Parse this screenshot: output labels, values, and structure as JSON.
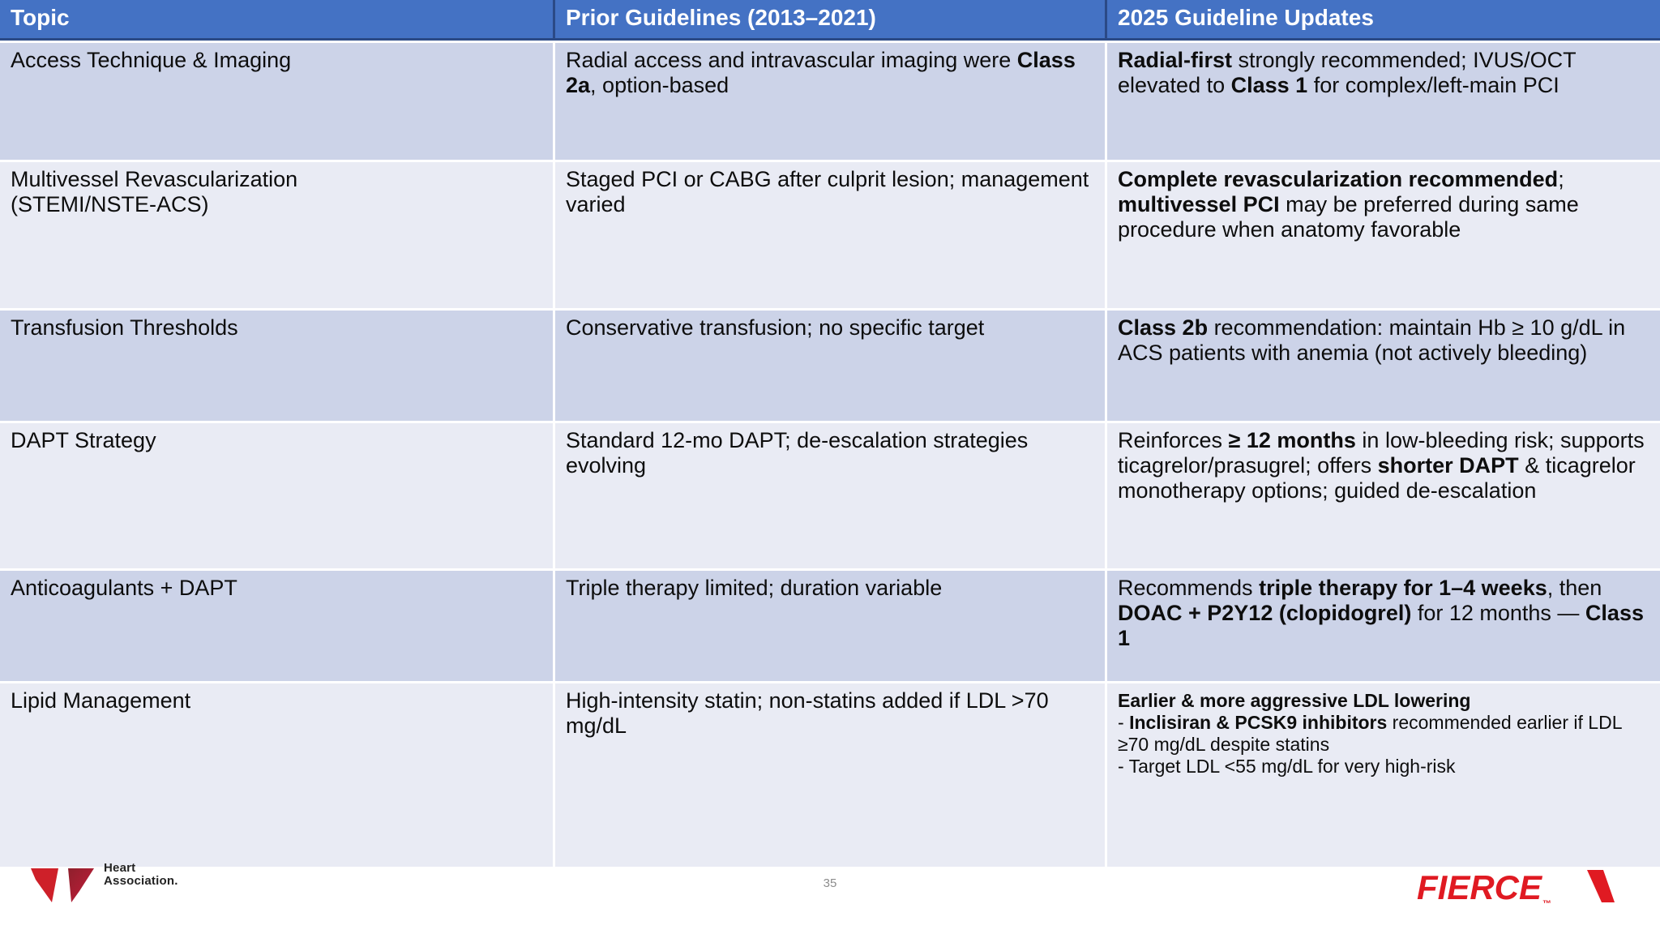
{
  "colors": {
    "header_blue": "#4472C4",
    "navy": "#2b4a86",
    "row_dark": "#CCD3E8",
    "row_light": "#E9EBF4",
    "fierce_red": "#E01A22",
    "aha_red": "#C41E3A",
    "aha_red_dark": "#8E1F2C"
  },
  "table": {
    "headers": {
      "topic": "Topic",
      "prior": "Prior Guidelines (2013–2021)",
      "updates": "2025 Guideline Updates"
    },
    "rows": [
      {
        "topic": [
          {
            "t": "Access Technique & Imaging"
          }
        ],
        "prior": [
          {
            "t": "Radial access and intravascular imaging were "
          },
          {
            "t": "Class 2a",
            "b": true
          },
          {
            "t": ", option-based"
          }
        ],
        "updates": [
          {
            "t": "Radial-first",
            "b": true
          },
          {
            "t": " strongly recommended; IVUS/OCT elevated to "
          },
          {
            "t": "Class 1",
            "b": true
          },
          {
            "t": " for complex/left-main PCI"
          }
        ]
      },
      {
        "topic": [
          {
            "t": "Multivessel Revascularization"
          },
          {
            "br": true
          },
          {
            "t": "(STEMI/NSTE-ACS)"
          }
        ],
        "prior": [
          {
            "t": "Staged PCI or CABG after culprit lesion; management varied"
          }
        ],
        "updates": [
          {
            "t": "Complete revascularization recommended",
            "b": true
          },
          {
            "t": "; "
          },
          {
            "t": "multivessel PCI",
            "b": true
          },
          {
            "t": " may be preferred during same procedure when anatomy favorable"
          }
        ]
      },
      {
        "topic": [
          {
            "t": "Transfusion Thresholds"
          }
        ],
        "prior": [
          {
            "t": "Conservative transfusion; no specific target"
          }
        ],
        "updates": [
          {
            "t": "Class 2b",
            "b": true
          },
          {
            "t": " recommendation: maintain Hb ≥ 10 g/dL in ACS patients with anemia (not actively bleeding)"
          }
        ]
      },
      {
        "topic": [
          {
            "t": "DAPT Strategy"
          }
        ],
        "prior": [
          {
            "t": "Standard 12-mo DAPT; de-escalation strategies evolving"
          }
        ],
        "updates": [
          {
            "t": "Reinforces "
          },
          {
            "t": "≥ 12 months",
            "b": true
          },
          {
            "t": " in low-bleeding risk; supports ticagrelor/prasugrel; offers "
          },
          {
            "t": "shorter DAPT",
            "b": true
          },
          {
            "t": " & ticagrelor monotherapy options; guided de-escalation"
          }
        ]
      },
      {
        "topic": [
          {
            "t": "Anticoagulants + DAPT"
          }
        ],
        "prior": [
          {
            "t": "Triple therapy limited; duration variable"
          }
        ],
        "updates": [
          {
            "t": "Recommends "
          },
          {
            "t": "triple therapy for 1–4 weeks",
            "b": true
          },
          {
            "t": ", then "
          },
          {
            "t": "DOAC + P2Y12 (clopidogrel)",
            "b": true
          },
          {
            "t": " for 12 months — "
          },
          {
            "t": "Class 1",
            "b": true
          }
        ]
      },
      {
        "topic": [
          {
            "t": "Lipid Management"
          }
        ],
        "prior": [
          {
            "t": "High-intensity statin; non-statins added if LDL >70 mg/dL"
          }
        ],
        "updates": [
          {
            "t": "Earlier & more aggressive LDL lowering",
            "b": true
          },
          {
            "br": true
          },
          {
            "t": "- "
          },
          {
            "t": "Inclisiran & PCSK9 inhibitors",
            "b": true
          },
          {
            "t": " recommended earlier if LDL ≥70 mg/dL despite statins"
          },
          {
            "br": true
          },
          {
            "t": "- Target LDL <55 mg/dL for very high-risk"
          }
        ]
      }
    ]
  },
  "footer": {
    "page_number": "35",
    "aha": {
      "line1": "Heart",
      "line2": "Association."
    },
    "fierce": {
      "label": "FIERCE",
      "tm": "™"
    }
  }
}
